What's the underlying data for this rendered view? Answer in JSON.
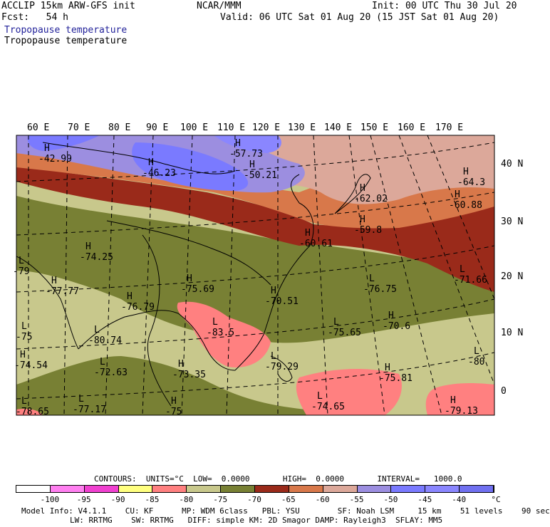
{
  "header": {
    "model_line": "ACCLIP 15km ARW-GFS init",
    "org": "NCAR/MMM",
    "init": "Init: 00 UTC Thu 30 Jul 20",
    "fcst": "Fcst:   54 h",
    "valid": "Valid: 06 UTC Sat 01 Aug 20 (15 JST Sat 01 Aug 20)",
    "field_title_1": "Tropopause temperature",
    "field_title_2": "Tropopause temperature"
  },
  "map": {
    "lon_labels": [
      "60 E",
      "70 E",
      "80 E",
      "90 E",
      "100 E",
      "110 E",
      "120 E",
      "130 E",
      "140 E",
      "150 E",
      "160 E",
      "170 E"
    ],
    "lat_labels": [
      "40 N",
      "30 N",
      "20 N",
      "10 N",
      "0"
    ],
    "centers": [
      {
        "type": "H",
        "value": "-42.99"
      },
      {
        "type": "H",
        "value": "-57.73"
      },
      {
        "type": "H",
        "value": "-46.23"
      },
      {
        "type": "H",
        "value": "-50.21"
      },
      {
        "type": "H",
        "value": "-64.3"
      },
      {
        "type": "H",
        "value": "-62.02"
      },
      {
        "type": "H",
        "value": "-60.88"
      },
      {
        "type": "H",
        "value": "-59.8"
      },
      {
        "type": "H",
        "value": "-60.61"
      },
      {
        "type": "H",
        "value": "-74.25"
      },
      {
        "type": "H",
        "value": "-77.77"
      },
      {
        "type": "H",
        "value": "-75.69"
      },
      {
        "type": "H",
        "value": "-76.79"
      },
      {
        "type": "H",
        "value": "-70.51"
      },
      {
        "type": "L",
        "value": "-76.75"
      },
      {
        "type": "L",
        "value": "-71.66"
      },
      {
        "type": "L",
        "value": "-75.65"
      },
      {
        "type": "H",
        "value": "-70.6"
      },
      {
        "type": "L",
        "value": "-83.5"
      },
      {
        "type": "L",
        "value": "-80.74"
      },
      {
        "type": "H",
        "value": "-74.54"
      },
      {
        "type": "L",
        "value": "-72.63"
      },
      {
        "type": "H",
        "value": "-73.35"
      },
      {
        "type": "L",
        "value": "-79.29"
      },
      {
        "type": "H",
        "value": "-75.81"
      },
      {
        "type": "L",
        "value": "-80"
      },
      {
        "type": "L",
        "value": "-74.65"
      },
      {
        "type": "H",
        "value": "-79.13"
      },
      {
        "type": "L",
        "value": "-75"
      },
      {
        "type": "L",
        "value": "-77.17"
      },
      {
        "type": "L",
        "value": "-78.65"
      },
      {
        "type": "L",
        "value": "-79"
      },
      {
        "type": "H",
        "value": "-75"
      }
    ]
  },
  "footer": {
    "contours": "CONTOURS:  UNITS=°C  LOW=  0.0000       HIGH=  0.0000       INTERVAL=   1000.0",
    "colorbar": {
      "labels": [
        "-100",
        "-95",
        "-90",
        "-85",
        "-80",
        "-75",
        "-70",
        "-65",
        "-60",
        "-55",
        "-50",
        "-45",
        "-40"
      ],
      "unit": "°C",
      "colors": [
        "#ffffff",
        "#ff7ff0",
        "#f040d0",
        "#ffff7f",
        "#ff8080",
        "#c8c88c",
        "#788034",
        "#9a2a1a",
        "#d8784a",
        "#dca89a",
        "#9c8ee0",
        "#7a7aff",
        "#8a86ff",
        "#7070f0"
      ]
    },
    "info_line_1": "Model Info: V4.1.1    CU: KF      MP: WDM 6class   PBL: YSU        SF: Noah LSM     15 km    51 levels    90 sec",
    "info_line_2": "LW: RRTMG    SW: RRTMG   DIFF: simple KM: 2D Smagor DAMP: Rayleigh3  SFLAY: MM5"
  }
}
